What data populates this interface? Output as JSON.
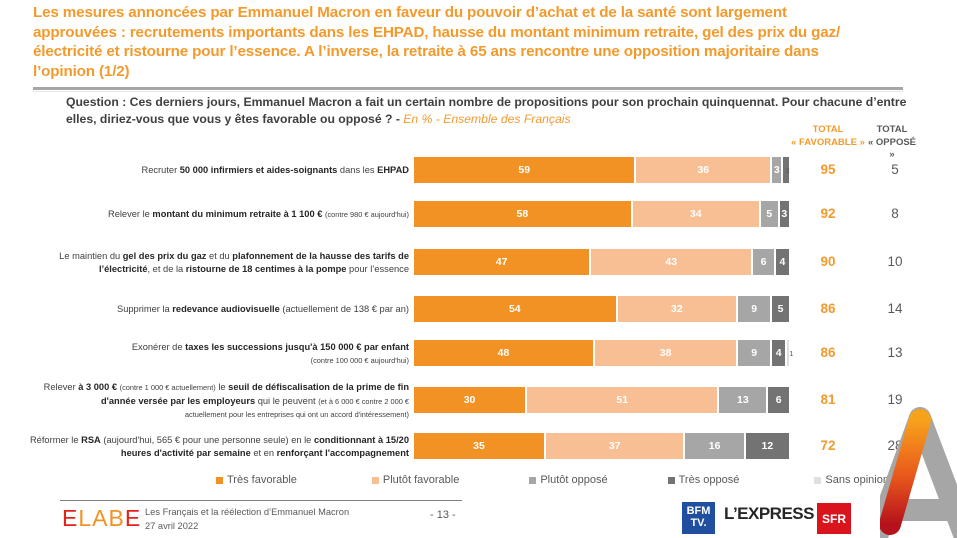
{
  "header": {
    "title": "Les mesures annoncées par Emmanuel Macron en faveur du pouvoir d’achat et de la santé sont largement approuvées : recrutements importants dans les EHPAD, hausse du montant minimum retraite, gel des prix du gaz/électricité et ristourne pour l’essence. A l’inverse, la retraite à 65 ans rencontre une opposition majoritaire dans l’opinion (1/2)"
  },
  "question": {
    "text": "Question : Ces derniers jours, Emmanuel Macron a fait un certain nombre de propositions pour son prochain quinquennat. Pour chacune d’entre elles, diriez-vous que vous y êtes favorable ou opposé ? - ",
    "subtext": "En % - Ensemble des Français"
  },
  "columns": {
    "total_favorable_line1": "TOTAL",
    "total_favorable_line2": "« FAVORABLE »",
    "total_oppose_line1": "TOTAL",
    "total_oppose_line2": "« OPPOSÉ »"
  },
  "chart_data": {
    "type": "bar",
    "orientation": "horizontal-stacked",
    "title": "",
    "xlabel": "",
    "ylabel": "",
    "unit": "%",
    "categories": [
      "Recruter 50 000 infirmiers et aides-soignants dans les EHPAD",
      "Relever le montant du minimum retraite à 1 100 € (contre 980 € aujourd'hui)",
      "Le maintien du gel des prix du gaz et du plafonnement de la hausse des tarifs de l’électricité, et de la ristourne de 18 centimes à la pompe pour l’essence",
      "Supprimer la redevance audiovisuelle (actuellement de 138 € par an)",
      "Exonérer de taxes les successions jusqu'à 150 000 € par enfant (contre 100 000 € aujourd'hui)",
      "Relever à 3 000 € (contre 1 000 € actuellement) le seuil de défiscalisation de la prime de fin d'année versée par les employeurs qui le peuvent (et à 6 000 € contre 2 000 € actuellement pour les entreprises qui ont un accord d'intéressement)",
      "Réformer le RSA (aujourd'hui, 565 € pour une personne seule) en le conditionnant à 15/20 heures d'activité par semaine et en renforçant l'accompagnement"
    ],
    "series": [
      {
        "name": "Très favorable",
        "color": "#f39224",
        "values": [
          59,
          58,
          47,
          54,
          48,
          30,
          35
        ]
      },
      {
        "name": "Plutôt favorable",
        "color": "#f8bf94",
        "values": [
          36,
          34,
          43,
          32,
          38,
          51,
          37
        ]
      },
      {
        "name": "Plutôt opposé",
        "color": "#a6a6a6",
        "values": [
          3,
          5,
          6,
          9,
          9,
          13,
          16
        ]
      },
      {
        "name": "Très opposé",
        "color": "#737373",
        "values": [
          2,
          3,
          4,
          5,
          4,
          6,
          12
        ]
      },
      {
        "name": "Sans opinion",
        "color": "#e0e0e0",
        "values": [
          0,
          0,
          0,
          0,
          1,
          0,
          0
        ]
      }
    ],
    "total_favorable": [
      95,
      92,
      90,
      86,
      86,
      81,
      72
    ],
    "total_oppose": [
      5,
      8,
      10,
      14,
      13,
      19,
      28
    ],
    "xlim": [
      0,
      100
    ],
    "grid": false,
    "legend_position": "bottom"
  },
  "rows": [
    {
      "html_label": "Recruter <b>50 000 infirmiers et aides-soignants</b> dans les <b>EHPAD</b>"
    },
    {
      "html_label": "Relever le <b>montant du minimum retraite à 1 100 €</b> <span class=\"small\">(contre 980 € aujourd'hui)</span>"
    },
    {
      "html_label": "Le maintien du <b>gel des prix du gaz</b> et du <b>plafonnement de la hausse des tarifs de l’électricité</b>, et de la <b>ristourne de 18 centimes à la pompe</b> pour l’essence"
    },
    {
      "html_label": "Supprimer la <b>redevance audiovisuelle</b> (actuellement de 138 € par an)"
    },
    {
      "html_label": "Exonérer de <b>taxes les successions jusqu'à 150 000 € par enfant</b><br><span class=\"small\">(contre 100 000 € aujourd'hui)</span>"
    },
    {
      "html_label": "Relever <b>à 3 000 €</b> <span class=\"small\">(contre 1 000 € actuellement)</span> le <b>seuil de défiscalisation de la prime de fin d'année versée par les employeurs</b> qui le peuvent <span class=\"small\">(et à 6 000 € contre 2 000 €<br>actuellement pour les entreprises qui ont un accord d'intéressement)</span>"
    },
    {
      "html_label": "Réformer le <b>RSA</b> (aujourd'hui, 565 € pour une personne seule) en le <b>conditionnant à 15/20 heures d'activité par semaine</b> et en <b>renforçant l'accompagnement</b>"
    }
  ],
  "footer": {
    "brand_letters": [
      "E",
      "L",
      "A",
      "B",
      "E"
    ],
    "brand_colors": [
      "#e2231a",
      "#f39224",
      "#f39224",
      "#f39224",
      "#e2231a"
    ],
    "report_title": "Les Français et la réélection d’Emmanuel Macron",
    "date": "27 avril 2022",
    "page_number": "- 13 -",
    "partner_bfm_line1": "BFM",
    "partner_bfm_line2": "TV.",
    "partner_lexpress": "L’EXPRESS",
    "partner_sfr": "SFR"
  }
}
